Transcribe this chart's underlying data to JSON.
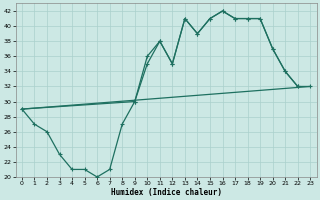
{
  "title": "",
  "xlabel": "Humidex (Indice chaleur)",
  "xlim": [
    -0.5,
    23.5
  ],
  "ylim": [
    20,
    43
  ],
  "yticks": [
    20,
    22,
    24,
    26,
    28,
    30,
    32,
    34,
    36,
    38,
    40,
    42
  ],
  "xticks": [
    0,
    1,
    2,
    3,
    4,
    5,
    6,
    7,
    8,
    9,
    10,
    11,
    12,
    13,
    14,
    15,
    16,
    17,
    18,
    19,
    20,
    21,
    22,
    23
  ],
  "bg_color": "#cce8e4",
  "grid_color": "#aad0cc",
  "line_color": "#1e7060",
  "line1_x": [
    0,
    1,
    2,
    3,
    4,
    5,
    6,
    7,
    8,
    9,
    10,
    11,
    12,
    13,
    14,
    15,
    16,
    17,
    18,
    19,
    20,
    21,
    22
  ],
  "line1_y": [
    29,
    27,
    26,
    23,
    21,
    21,
    20,
    21,
    27,
    30,
    36,
    38,
    35,
    41,
    39,
    41,
    42,
    41,
    41,
    41,
    37,
    34,
    32
  ],
  "line2_x": [
    0,
    9,
    10,
    11,
    12,
    13,
    14,
    15,
    16,
    17,
    18,
    19,
    20,
    21,
    22,
    23
  ],
  "line2_y": [
    29,
    30,
    35,
    38,
    35,
    41,
    39,
    41,
    42,
    41,
    41,
    41,
    37,
    34,
    32,
    32
  ],
  "line3_x": [
    0,
    23
  ],
  "line3_y": [
    29,
    32
  ]
}
